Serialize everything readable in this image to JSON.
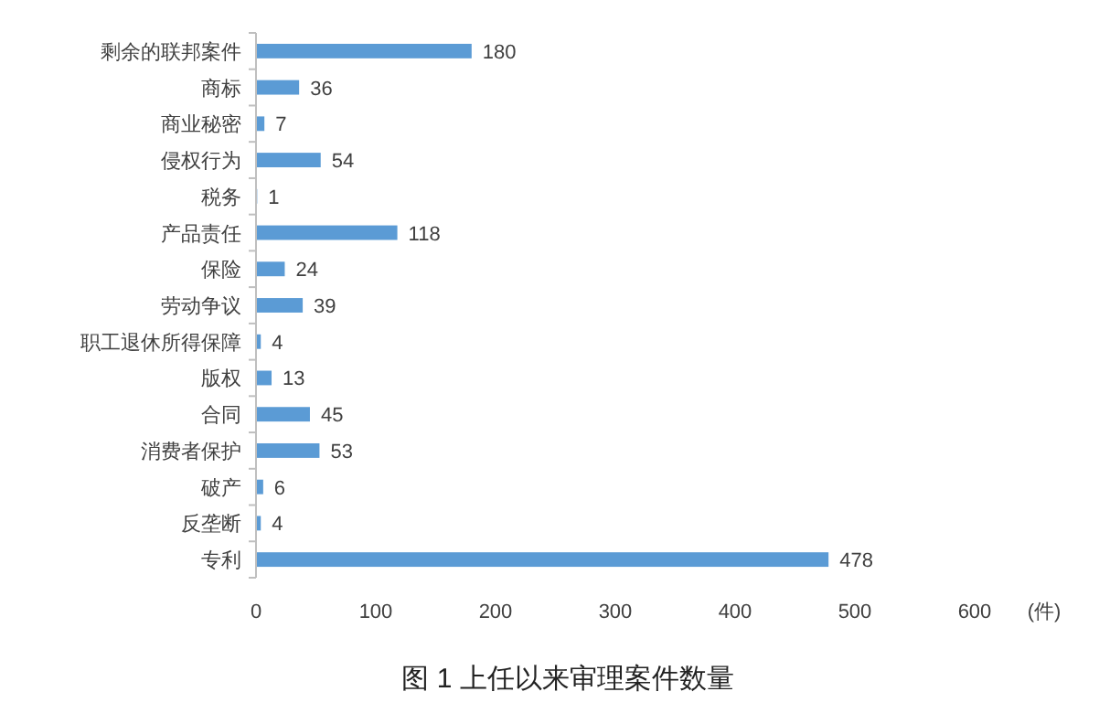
{
  "chart_data": {
    "type": "bar",
    "orientation": "horizontal",
    "title": "图 1 上任以来审理案件数量",
    "xlabel": "(件)",
    "categories": [
      "剩余的联邦案件",
      "商标",
      "商业秘密",
      "侵权行为",
      "税务",
      "产品责任",
      "保险",
      "劳动争议",
      "职工退休所得保障",
      "版权",
      "合同",
      "消费者保护",
      "破产",
      "反垄断",
      "专利"
    ],
    "values": [
      180,
      36,
      7,
      54,
      1,
      118,
      24,
      39,
      4,
      13,
      45,
      53,
      6,
      4,
      478
    ],
    "color": "#5b9bd5",
    "xlim": [
      0,
      600
    ],
    "xticks": [
      0,
      100,
      200,
      300,
      400,
      500,
      600
    ],
    "data_labels": true,
    "grid": false
  }
}
